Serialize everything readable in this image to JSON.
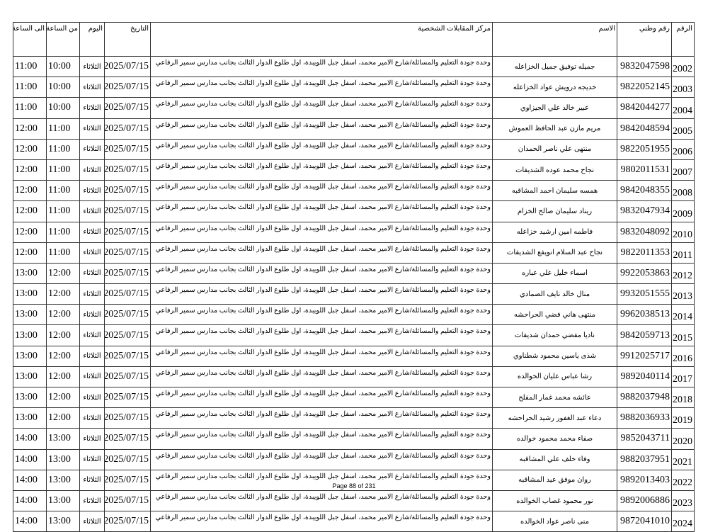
{
  "headers": {
    "num": "الرقم",
    "national_id": "رقم وطني",
    "name": "الاسم",
    "center": "مركز المقابلات الشخصية",
    "date": "التاريخ",
    "day": "اليوم",
    "from": "من الساعة",
    "to": "الى الساعة"
  },
  "address": "وحدة جودة التعليم والمسائلة/شارع الامير محمد، اسفل جبل اللويبدة، اول طلوع الدوار الثالث بجانب مدارس سمير الرفاعي",
  "date": "2025/07/15",
  "day": "الثلاثاء",
  "rows": [
    {
      "num": "2002",
      "nid": "9832047598",
      "name": "جميله توفيق جميل الخزاعله",
      "from": "10:00",
      "to": "11:00"
    },
    {
      "num": "2003",
      "nid": "9822052145",
      "name": "خديجه درويش عواد الخزاعله",
      "from": "10:00",
      "to": "11:00"
    },
    {
      "num": "2004",
      "nid": "9842044277",
      "name": "عبير خالد علي الجيزاوي",
      "from": "10:00",
      "to": "11:00"
    },
    {
      "num": "2005",
      "nid": "9842048594",
      "name": "مريم مازن عبد الحافظ العموش",
      "from": "11:00",
      "to": "12:00"
    },
    {
      "num": "2006",
      "nid": "9822051955",
      "name": "منتهى علي ناصر الحمدان",
      "from": "11:00",
      "to": "12:00"
    },
    {
      "num": "2007",
      "nid": "9802011531",
      "name": "نجاح محمد عوده الشديفات",
      "from": "11:00",
      "to": "12:00"
    },
    {
      "num": "2008",
      "nid": "9842048355",
      "name": "همسه سليمان احمد المشاقبه",
      "from": "11:00",
      "to": "12:00"
    },
    {
      "num": "2009",
      "nid": "9832047934",
      "name": "ريناد سليمان صالح الخزام",
      "from": "11:00",
      "to": "12:00"
    },
    {
      "num": "2010",
      "nid": "9832048092",
      "name": "فاطمه امين ارشيد خزاعله",
      "from": "11:00",
      "to": "12:00"
    },
    {
      "num": "2011",
      "nid": "9822011353",
      "name": "نجاح عبد السلام انويفع الشديفات",
      "from": "11:00",
      "to": "12:00"
    },
    {
      "num": "2012",
      "nid": "9922053863",
      "name": "اسماء خليل علي عباره",
      "from": "12:00",
      "to": "13:00"
    },
    {
      "num": "2013",
      "nid": "9932051555",
      "name": "منال خالد نايف الصمادي",
      "from": "12:00",
      "to": "13:00"
    },
    {
      "num": "2014",
      "nid": "9962038513",
      "name": "منتهى هاني فضي الحراحشه",
      "from": "12:00",
      "to": "13:00"
    },
    {
      "num": "2015",
      "nid": "9842059713",
      "name": "ناديا مفضي حمدان شديفات",
      "from": "12:00",
      "to": "13:00"
    },
    {
      "num": "2016",
      "nid": "9912025717",
      "name": "شذى ياسين محمود شطناوي",
      "from": "12:00",
      "to": "13:00"
    },
    {
      "num": "2017",
      "nid": "9892040114",
      "name": "رشا عباس عليان الخوالده",
      "from": "12:00",
      "to": "13:00"
    },
    {
      "num": "2018",
      "nid": "9882037948",
      "name": "عائشه محمد غمار المفلح",
      "from": "12:00",
      "to": "13:00"
    },
    {
      "num": "2019",
      "nid": "9882036933",
      "name": "دعاء عبد الغفور رشيد الحراحشه",
      "from": "12:00",
      "to": "13:00"
    },
    {
      "num": "2020",
      "nid": "9852043711",
      "name": "صفاء محمد محمود خوالده",
      "from": "13:00",
      "to": "14:00"
    },
    {
      "num": "2021",
      "nid": "9882037951",
      "name": "وفاء خلف علي المشاقبه",
      "from": "13:00",
      "to": "14:00"
    },
    {
      "num": "2022",
      "nid": "9892013403",
      "name": "روان موفق عيد المشاقبه",
      "from": "13:00",
      "to": "14:00"
    },
    {
      "num": "2023",
      "nid": "9892006886",
      "name": "نور محمود غصاب الخوالده",
      "from": "13:00",
      "to": "14:00"
    },
    {
      "num": "2024",
      "nid": "9872041010",
      "name": "منى ناصر عواد الخوالده",
      "from": "13:00",
      "to": "14:00"
    }
  ],
  "footer": "Page 88 of 231"
}
